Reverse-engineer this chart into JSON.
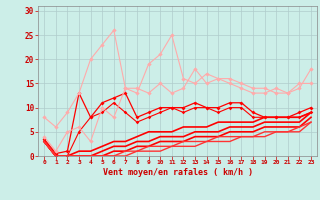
{
  "xlabel": "Vent moyen/en rafales ( km/h )",
  "xlim": [
    -0.5,
    23.5
  ],
  "ylim": [
    0,
    31
  ],
  "yticks": [
    0,
    5,
    10,
    15,
    20,
    25,
    30
  ],
  "xticks": [
    0,
    1,
    2,
    3,
    4,
    5,
    6,
    7,
    8,
    9,
    10,
    11,
    12,
    13,
    14,
    15,
    16,
    17,
    18,
    19,
    20,
    21,
    22,
    23
  ],
  "bg_color": "#cceee8",
  "grid_color": "#b0cccc",
  "lines": [
    {
      "x": [
        0,
        1,
        2,
        3,
        4,
        5,
        6,
        7,
        8,
        9,
        10,
        11,
        12,
        13,
        14,
        15,
        16,
        17,
        18,
        19,
        20,
        21,
        22,
        23
      ],
      "y": [
        3.5,
        0.5,
        1,
        13,
        8,
        11,
        12,
        13,
        8,
        9,
        10,
        10,
        10,
        11,
        10,
        10,
        11,
        11,
        9,
        8,
        8,
        8,
        9,
        10
      ],
      "color": "#ff0000",
      "lw": 0.9,
      "marker": "D",
      "ms": 2.0
    },
    {
      "x": [
        0,
        1,
        2,
        3,
        4,
        5,
        6,
        7,
        8,
        9,
        10,
        11,
        12,
        13,
        14,
        15,
        16,
        17,
        18,
        19,
        20,
        21,
        22,
        23
      ],
      "y": [
        3,
        0,
        0,
        5,
        8,
        9,
        11,
        9,
        7,
        8,
        9,
        10,
        9,
        10,
        10,
        9,
        10,
        10,
        8,
        8,
        8,
        8,
        8,
        9
      ],
      "color": "#ff0000",
      "lw": 0.8,
      "marker": "D",
      "ms": 1.8
    },
    {
      "x": [
        0,
        1,
        2,
        3,
        4,
        5,
        6,
        7,
        8,
        9,
        10,
        11,
        12,
        13,
        14,
        15,
        16,
        17,
        18,
        19,
        20,
        21,
        22,
        23
      ],
      "y": [
        3,
        0,
        0,
        1,
        1,
        2,
        3,
        3,
        4,
        5,
        5,
        5,
        6,
        6,
        6,
        7,
        7,
        7,
        7,
        8,
        8,
        8,
        8,
        9
      ],
      "color": "#ff0000",
      "lw": 1.2,
      "marker": null,
      "ms": 0
    },
    {
      "x": [
        0,
        1,
        2,
        3,
        4,
        5,
        6,
        7,
        8,
        9,
        10,
        11,
        12,
        13,
        14,
        15,
        16,
        17,
        18,
        19,
        20,
        21,
        22,
        23
      ],
      "y": [
        3,
        0,
        0,
        0,
        0,
        1,
        2,
        2,
        3,
        3,
        4,
        4,
        4,
        5,
        5,
        5,
        6,
        6,
        6,
        7,
        7,
        7,
        7,
        9
      ],
      "color": "#ff0000",
      "lw": 1.2,
      "marker": null,
      "ms": 0
    },
    {
      "x": [
        0,
        1,
        2,
        3,
        4,
        5,
        6,
        7,
        8,
        9,
        10,
        11,
        12,
        13,
        14,
        15,
        16,
        17,
        18,
        19,
        20,
        21,
        22,
        23
      ],
      "y": [
        3,
        0,
        0,
        0,
        0,
        0,
        1,
        1,
        2,
        2,
        3,
        3,
        3,
        4,
        4,
        4,
        5,
        5,
        5,
        6,
        6,
        6,
        6,
        8
      ],
      "color": "#ff0000",
      "lw": 1.2,
      "marker": null,
      "ms": 0
    },
    {
      "x": [
        0,
        1,
        2,
        3,
        4,
        5,
        6,
        7,
        8,
        9,
        10,
        11,
        12,
        13,
        14,
        15,
        16,
        17,
        18,
        19,
        20,
        21,
        22,
        23
      ],
      "y": [
        3,
        0,
        0,
        0,
        0,
        0,
        0,
        1,
        1,
        2,
        2,
        2,
        3,
        3,
        3,
        4,
        4,
        4,
        4,
        5,
        5,
        5,
        6,
        7
      ],
      "color": "#ff3333",
      "lw": 1.0,
      "marker": null,
      "ms": 0
    },
    {
      "x": [
        0,
        1,
        2,
        3,
        4,
        5,
        6,
        7,
        8,
        9,
        10,
        11,
        12,
        13,
        14,
        15,
        16,
        17,
        18,
        19,
        20,
        21,
        22,
        23
      ],
      "y": [
        3,
        0,
        0,
        0,
        0,
        0,
        0,
        0,
        1,
        1,
        1,
        2,
        2,
        2,
        3,
        3,
        3,
        4,
        4,
        4,
        5,
        5,
        5,
        7
      ],
      "color": "#ff3333",
      "lw": 1.0,
      "marker": null,
      "ms": 0
    },
    {
      "x": [
        0,
        1,
        2,
        3,
        4,
        5,
        6,
        7,
        8,
        9,
        10,
        11,
        12,
        13,
        14,
        15,
        16,
        17,
        18,
        19,
        20,
        21,
        22,
        23
      ],
      "y": [
        4,
        1,
        5,
        6,
        3,
        10,
        8,
        14,
        14,
        13,
        15,
        13,
        14,
        18,
        15,
        16,
        15,
        14,
        13,
        13,
        14,
        13,
        14,
        18
      ],
      "color": "#ffaaaa",
      "lw": 0.8,
      "marker": "D",
      "ms": 2.2
    },
    {
      "x": [
        0,
        1,
        2,
        3,
        4,
        5,
        6,
        7,
        8,
        9,
        10,
        11,
        12,
        13,
        14,
        15,
        16,
        17,
        18,
        19,
        20,
        21,
        22,
        23
      ],
      "y": [
        8,
        6,
        9,
        13,
        20,
        23,
        26,
        14,
        13,
        19,
        21,
        25,
        16,
        15,
        17,
        16,
        16,
        15,
        14,
        14,
        13,
        13,
        15,
        15
      ],
      "color": "#ffaaaa",
      "lw": 0.8,
      "marker": "D",
      "ms": 2.2
    }
  ]
}
